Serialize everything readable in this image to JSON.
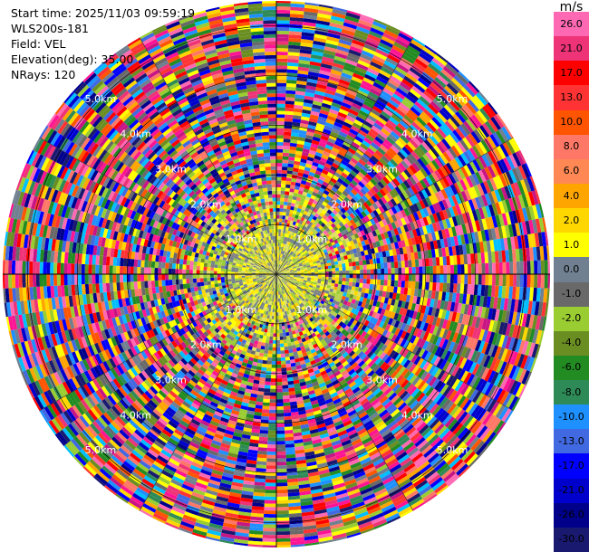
{
  "info": {
    "start_time": "Start time: 2025/11/03 09:59:19",
    "instrument": "WLS200s-181",
    "field": "Field: VEL",
    "elevation": "Elevation(deg): 35.00",
    "nrays": "NRays: 120"
  },
  "colorbar": {
    "unit": "m/s",
    "ticks": [
      "26.0",
      "21.0",
      "17.0",
      "13.0",
      "10.0",
      "8.0",
      "6.0",
      "4.0",
      "2.0",
      "1.0",
      "0.0",
      "-1.0",
      "-2.0",
      "-4.0",
      "-6.0",
      "-8.0",
      "-10.0",
      "-13.0",
      "-17.0",
      "-21.0",
      "-26.0",
      "-30.0"
    ],
    "colors": [
      "#ff69b4",
      "#ee3377",
      "#ff0000",
      "#ff3333",
      "#ff5500",
      "#ff7766",
      "#ff8855",
      "#ffa500",
      "#ffd700",
      "#ffff00",
      "#708090",
      "#696969",
      "#9acd32",
      "#6b8e23",
      "#228b22",
      "#2e8b57",
      "#1e90ff",
      "#4169e1",
      "#0000ff",
      "#0000cd",
      "#00008b",
      "#191970"
    ]
  },
  "chart_data": {
    "type": "ppi",
    "title": "",
    "field": "VEL",
    "units": "m/s",
    "elevation_deg": 35.0,
    "n_rays": 120,
    "range_rings_km": [
      1.0,
      2.0,
      3.0,
      4.0,
      5.0
    ],
    "range_labels": [
      "1.0km",
      "2.0km",
      "3.0km",
      "4.0km",
      "5.0km"
    ],
    "max_range_km": 5.5,
    "color_levels": [
      -30.0,
      -26.0,
      -21.0,
      -17.0,
      -13.0,
      -10.0,
      -8.0,
      -6.0,
      -4.0,
      -2.0,
      -1.0,
      0.0,
      1.0,
      2.0,
      4.0,
      6.0,
      8.0,
      10.0,
      13.0,
      17.0,
      21.0,
      26.0
    ],
    "inner_region": {
      "range_km": [
        0.0,
        1.0
      ],
      "dominant_values_ms": [
        1.5,
        0.0,
        -1.5
      ]
    },
    "transition_region": {
      "range_km": [
        1.0,
        1.8
      ],
      "dominant_values_ms": [
        2.0,
        -2.0,
        0.0
      ]
    },
    "outer_region": {
      "range_km": [
        1.8,
        5.5
      ],
      "description_values": "noise"
    }
  }
}
